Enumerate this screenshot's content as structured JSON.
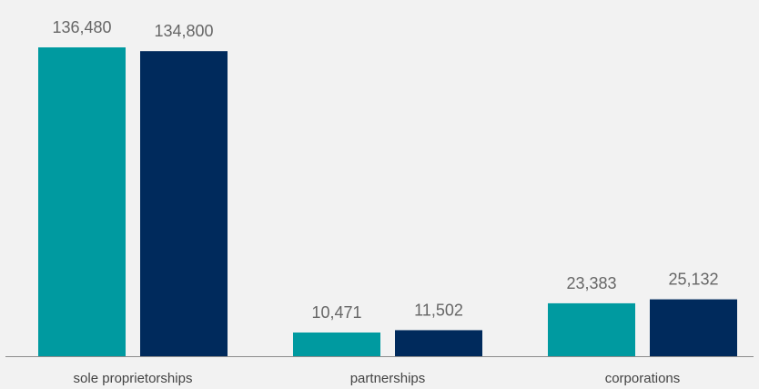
{
  "chart_data": {
    "type": "bar",
    "categories": [
      "sole proprietorships",
      "partnerships",
      "corporations"
    ],
    "series": [
      {
        "color": "#009aa0",
        "values": [
          136480,
          10471,
          23383
        ]
      },
      {
        "color": "#002a5c",
        "values": [
          134800,
          11502,
          25132
        ]
      }
    ],
    "data_labels": [
      [
        "136,480",
        "10,471",
        "23,383"
      ],
      [
        "134,800",
        "11,502",
        "25,132"
      ]
    ],
    "ylim": [
      0,
      136480
    ],
    "grid": false,
    "legend": "none",
    "axis_color": "#8c8c8c",
    "background": "#f2f2f2"
  }
}
